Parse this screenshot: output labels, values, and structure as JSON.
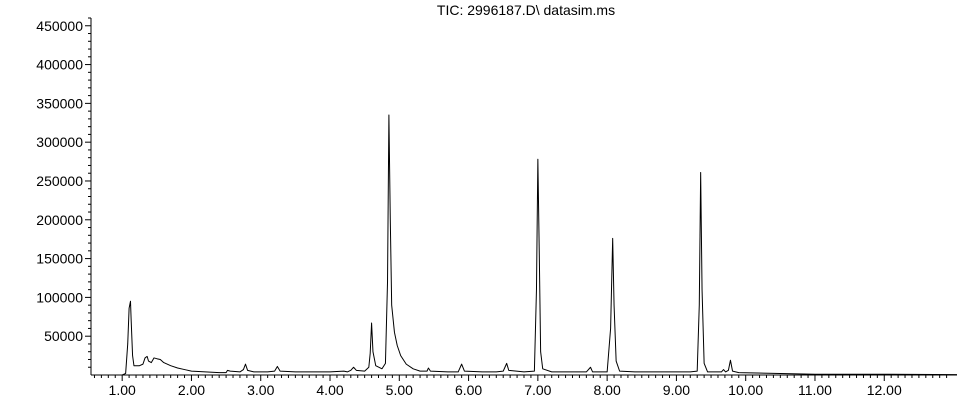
{
  "chart_data": {
    "type": "line",
    "title": "TIC: 2996187.D\\ datasim.ms",
    "xlabel": "",
    "ylabel": "",
    "xlim": [
      0.55,
      13.05
    ],
    "ylim": [
      0,
      460000
    ],
    "x_ticks": [
      1.0,
      2.0,
      3.0,
      4.0,
      5.0,
      6.0,
      7.0,
      8.0,
      9.0,
      10.0,
      11.0,
      12.0
    ],
    "x_tick_labels": [
      "1.00",
      "2.00",
      "3.00",
      "4.00",
      "5.00",
      "6.00",
      "7.00",
      "8.00",
      "9.00",
      "10.00",
      "11.00",
      "12.00"
    ],
    "y_ticks": [
      50000,
      100000,
      150000,
      200000,
      250000,
      300000,
      350000,
      400000,
      450000
    ],
    "y_tick_labels": [
      "50000",
      "100000",
      "150000",
      "200000",
      "250000",
      "300000",
      "350000",
      "400000",
      "450000"
    ],
    "grid": false,
    "legend": "none",
    "line_color": "#000000",
    "series": [
      {
        "values": [
          [
            0.55,
            0
          ],
          [
            1.0,
            0
          ],
          [
            1.05,
            2000
          ],
          [
            1.08,
            40000
          ],
          [
            1.1,
            86000
          ],
          [
            1.12,
            95000
          ],
          [
            1.13,
            70000
          ],
          [
            1.15,
            25000
          ],
          [
            1.17,
            12000
          ],
          [
            1.25,
            12000
          ],
          [
            1.3,
            14000
          ],
          [
            1.33,
            22000
          ],
          [
            1.36,
            24000
          ],
          [
            1.38,
            18000
          ],
          [
            1.42,
            16000
          ],
          [
            1.46,
            22000
          ],
          [
            1.5,
            21000
          ],
          [
            1.55,
            20000
          ],
          [
            1.6,
            16000
          ],
          [
            1.7,
            12000
          ],
          [
            1.8,
            9000
          ],
          [
            1.9,
            7000
          ],
          [
            2.0,
            5000
          ],
          [
            2.2,
            4000
          ],
          [
            2.4,
            3000
          ],
          [
            2.5,
            3000
          ],
          [
            2.52,
            6000
          ],
          [
            2.56,
            5000
          ],
          [
            2.7,
            4000
          ],
          [
            2.75,
            7000
          ],
          [
            2.78,
            14000
          ],
          [
            2.81,
            6000
          ],
          [
            2.9,
            4000
          ],
          [
            3.1,
            4000
          ],
          [
            3.2,
            5000
          ],
          [
            3.24,
            11000
          ],
          [
            3.28,
            5000
          ],
          [
            3.5,
            4000
          ],
          [
            3.8,
            4000
          ],
          [
            4.0,
            4000
          ],
          [
            4.2,
            5000
          ],
          [
            4.25,
            4000
          ],
          [
            4.3,
            6000
          ],
          [
            4.34,
            10000
          ],
          [
            4.38,
            6000
          ],
          [
            4.5,
            5000
          ],
          [
            4.56,
            10000
          ],
          [
            4.58,
            28000
          ],
          [
            4.6,
            67000
          ],
          [
            4.62,
            30000
          ],
          [
            4.66,
            12000
          ],
          [
            4.75,
            8000
          ],
          [
            4.8,
            15000
          ],
          [
            4.83,
            120000
          ],
          [
            4.85,
            335000
          ],
          [
            4.87,
            200000
          ],
          [
            4.89,
            90000
          ],
          [
            4.93,
            55000
          ],
          [
            4.97,
            38000
          ],
          [
            5.02,
            25000
          ],
          [
            5.1,
            14000
          ],
          [
            5.2,
            8000
          ],
          [
            5.3,
            5000
          ],
          [
            5.4,
            5000
          ],
          [
            5.42,
            9000
          ],
          [
            5.45,
            5000
          ],
          [
            5.7,
            4000
          ],
          [
            5.85,
            4000
          ],
          [
            5.9,
            14000
          ],
          [
            5.94,
            5000
          ],
          [
            6.2,
            4000
          ],
          [
            6.4,
            4000
          ],
          [
            6.5,
            5000
          ],
          [
            6.55,
            15000
          ],
          [
            6.58,
            6000
          ],
          [
            6.8,
            4000
          ],
          [
            6.95,
            5000
          ],
          [
            6.98,
            110000
          ],
          [
            7.0,
            278000
          ],
          [
            7.02,
            160000
          ],
          [
            7.04,
            30000
          ],
          [
            7.07,
            8000
          ],
          [
            7.2,
            4000
          ],
          [
            7.7,
            4000
          ],
          [
            7.76,
            10000
          ],
          [
            7.79,
            4000
          ],
          [
            8.0,
            4000
          ],
          [
            8.05,
            60000
          ],
          [
            8.08,
            176000
          ],
          [
            8.1,
            90000
          ],
          [
            8.13,
            18000
          ],
          [
            8.18,
            5000
          ],
          [
            8.4,
            4000
          ],
          [
            9.2,
            4000
          ],
          [
            9.3,
            5000
          ],
          [
            9.33,
            90000
          ],
          [
            9.35,
            261000
          ],
          [
            9.37,
            110000
          ],
          [
            9.4,
            15000
          ],
          [
            9.45,
            4000
          ],
          [
            9.65,
            4000
          ],
          [
            9.68,
            7000
          ],
          [
            9.71,
            4000
          ],
          [
            9.75,
            6000
          ],
          [
            9.78,
            19000
          ],
          [
            9.81,
            5000
          ],
          [
            9.9,
            3000
          ],
          [
            10.5,
            2000
          ],
          [
            11.0,
            1000
          ],
          [
            12.0,
            1000
          ],
          [
            13.05,
            500
          ]
        ]
      }
    ]
  }
}
